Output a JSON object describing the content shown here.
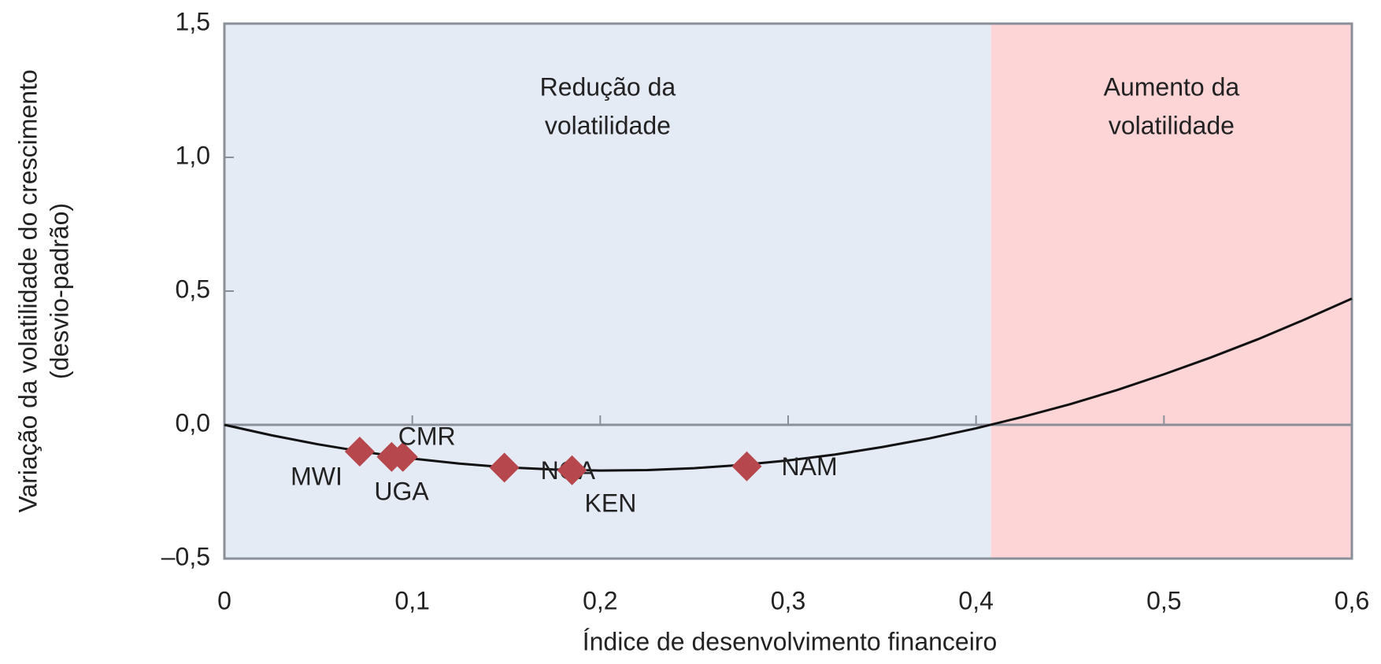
{
  "chart_data": {
    "type": "scatter",
    "x_label": "Índice de desenvolvimento financeiro",
    "y_label": [
      "Variação da volatilidade do crescimento",
      "(desvio-padrão)"
    ],
    "xlim": [
      0,
      0.6
    ],
    "ylim": [
      -0.5,
      1.5
    ],
    "xticks": [
      0,
      {
        "value": 0.1,
        "label": "0,1"
      },
      {
        "value": 0.2,
        "label": "0,2"
      },
      {
        "value": 0.3,
        "label": "0,3"
      },
      {
        "value": 0.4,
        "label": "0,4"
      },
      {
        "value": 0.5,
        "label": "0,5"
      },
      {
        "value": 0.6,
        "label": "0,6"
      }
    ],
    "yticks": [
      {
        "value": -0.5,
        "label": "–0,5"
      },
      {
        "value": 0,
        "label": "0,0"
      },
      {
        "value": 0.5,
        "label": "0,5"
      },
      {
        "value": 1,
        "label": "1,0"
      },
      {
        "value": 1.5,
        "label": "1,5"
      }
    ],
    "regions": [
      {
        "label": [
          "Redução da",
          "volatilidade"
        ],
        "from": 0,
        "to": 0.408,
        "color": "#e4ebf5"
      },
      {
        "label": [
          "Aumento da",
          "volatilidade"
        ],
        "from": 0.408,
        "to": 0.6,
        "color": "#fdd5d7"
      }
    ],
    "curve": {
      "color": "#111111",
      "x": [
        0,
        0.025,
        0.05,
        0.075,
        0.1,
        0.125,
        0.15,
        0.175,
        0.2,
        0.225,
        0.25,
        0.275,
        0.3,
        0.325,
        0.35,
        0.375,
        0.4,
        0.425,
        0.45,
        0.475,
        0.5,
        0.525,
        0.55,
        0.575,
        0.6
      ],
      "values": [
        0,
        -0.039,
        -0.073,
        -0.102,
        -0.126,
        -0.145,
        -0.159,
        -0.167,
        -0.171,
        -0.169,
        -0.162,
        -0.15,
        -0.133,
        -0.111,
        -0.083,
        -0.051,
        -0.013,
        0.03,
        0.077,
        0.13,
        0.189,
        0.252,
        0.32,
        0.394,
        0.472
      ]
    },
    "points": {
      "color": "#b5474d",
      "labels": [
        "MWI",
        "UGA",
        "CMR",
        "NGA",
        "KEN",
        "NAM"
      ],
      "x": [
        0.072,
        0.089,
        0.095,
        0.149,
        0.185,
        0.278
      ],
      "values": [
        -0.1,
        -0.12,
        -0.12,
        -0.16,
        -0.17,
        -0.155
      ]
    }
  }
}
